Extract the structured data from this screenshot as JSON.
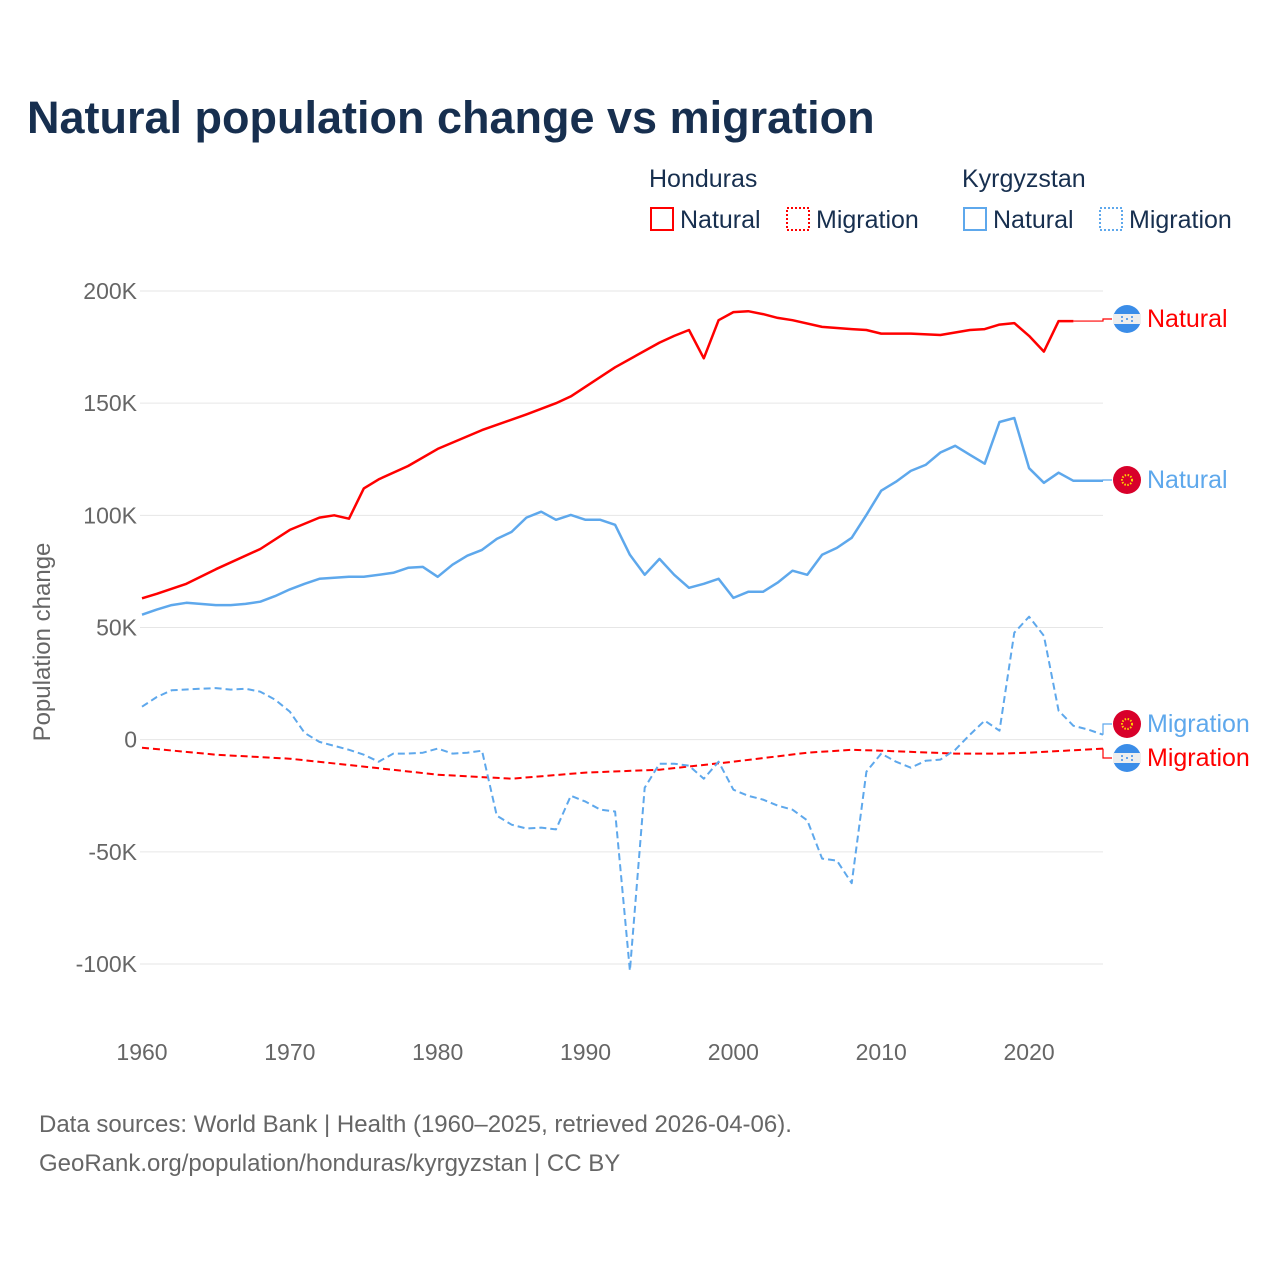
{
  "colors": {
    "honduras": "#ff0000",
    "kyrgyzstan": "#5ea8ec",
    "title": "#172f4f",
    "grid": "#e6e6e6"
  },
  "legend": {
    "groups": [
      {
        "name": "Honduras",
        "items": [
          {
            "label": "Natural",
            "style": "solid"
          },
          {
            "label": "Migration",
            "style": "dotted"
          }
        ]
      },
      {
        "name": "Kyrgyzstan",
        "items": [
          {
            "label": "Natural",
            "style": "solid"
          },
          {
            "label": "Migration",
            "style": "dotted"
          }
        ]
      }
    ]
  },
  "footer": {
    "line1": "Data sources: World Bank | Health (1960–2025, retrieved 2026-04-06).",
    "line2": "GeoRank.org/population/honduras/kyrgyzstan | CC BY"
  },
  "chart_data": {
    "type": "line",
    "title": "Natural population change vs migration",
    "xlabel": "",
    "ylabel": "Population change",
    "xlim": [
      1960,
      2025
    ],
    "ylim": [
      -100000,
      200000
    ],
    "x_ticks": [
      1960,
      1970,
      1980,
      1990,
      2000,
      2010,
      2020
    ],
    "x_tick_labels": [
      "1960",
      "1970",
      "1980",
      "1990",
      "2000",
      "2010",
      "2020"
    ],
    "y_ticks": [
      200000,
      150000,
      100000,
      50000,
      0,
      -50000,
      -100000
    ],
    "y_tick_labels": [
      "200K",
      "150K",
      "100K",
      "50K",
      "0",
      "-50K",
      "-100K"
    ],
    "grid": true,
    "legend_position": "top-right",
    "series": [
      {
        "name": "Honduras Natural",
        "end_label": "Natural",
        "country": "honduras",
        "dash": "solid",
        "x": [
          1960,
          1961,
          1963,
          1965,
          1968,
          1970,
          1972,
          1973,
          1974,
          1975,
          1976,
          1978,
          1980,
          1983,
          1986,
          1988,
          1989,
          1992,
          1995,
          1996,
          1997,
          1998,
          1999,
          2000,
          2001,
          2002,
          2003,
          2004,
          2006,
          2008,
          2009,
          2010,
          2012,
          2014,
          2016,
          2017,
          2018,
          2019,
          2020,
          2021,
          2022,
          2023
        ],
        "y": [
          63000,
          65000,
          69500,
          76000,
          85000,
          93500,
          99000,
          100000,
          98500,
          112000,
          116000,
          122000,
          129600,
          138000,
          145000,
          150000,
          153000,
          166000,
          177000,
          180000,
          182600,
          170000,
          187000,
          190600,
          191000,
          189700,
          188000,
          187000,
          184000,
          183000,
          182600,
          181000,
          181000,
          180400,
          182600,
          183000,
          185000,
          185700,
          180000,
          173000,
          186600,
          186600
        ]
      },
      {
        "name": "Honduras Migration",
        "end_label": "Migration",
        "country": "honduras",
        "dash": "dashed",
        "x": [
          1960,
          1965,
          1970,
          1975,
          1980,
          1985,
          1990,
          1995,
          2000,
          2005,
          2008,
          2010,
          2015,
          2018,
          2020,
          2025
        ],
        "y": [
          -3600,
          -6700,
          -8500,
          -12000,
          -15600,
          -17400,
          -14700,
          -13400,
          -9800,
          -5800,
          -4500,
          -4900,
          -6200,
          -6200,
          -5800,
          -4000
        ]
      },
      {
        "name": "Kyrgyzstan Natural",
        "end_label": "Natural",
        "country": "kyrgyzstan",
        "dash": "solid",
        "x": [
          1960,
          1961,
          1962,
          1963,
          1965,
          1966,
          1967,
          1968,
          1969,
          1970,
          1971,
          1972,
          1974,
          1975,
          1977,
          1978,
          1979,
          1980,
          1981,
          1982,
          1983,
          1984,
          1985,
          1986,
          1987,
          1988,
          1989,
          1990,
          1991,
          1992,
          1993,
          1994,
          1995,
          1996,
          1997,
          1998,
          1999,
          2000,
          2001,
          2002,
          2003,
          2004,
          2005,
          2006,
          2007,
          2008,
          2009,
          2010,
          2011,
          2012,
          2013,
          2014,
          2015,
          2016,
          2017,
          2018,
          2019,
          2020,
          2021,
          2022,
          2023,
          2024,
          2025
        ],
        "y": [
          55700,
          58000,
          60000,
          61000,
          60000,
          60000,
          60500,
          61500,
          64000,
          67000,
          69500,
          71700,
          72600,
          72600,
          74400,
          76600,
          77000,
          72600,
          78000,
          82000,
          84600,
          89500,
          92600,
          99000,
          101600,
          98000,
          100200,
          98000,
          98000,
          95800,
          82400,
          73500,
          80600,
          73500,
          67700,
          69500,
          71700,
          63200,
          65900,
          65900,
          70000,
          75300,
          73500,
          82400,
          85500,
          90000,
          100200,
          111000,
          115000,
          119800,
          122500,
          128000,
          131000,
          127000,
          123000,
          141600,
          143400,
          121000,
          114500,
          119000,
          115400,
          115400,
          115400
        ]
      },
      {
        "name": "Kyrgyzstan Migration",
        "end_label": "Migration",
        "country": "kyrgyzstan",
        "dash": "dashed",
        "x": [
          1960,
          1961,
          1962,
          1964,
          1965,
          1966,
          1967,
          1968,
          1969,
          1970,
          1971,
          1972,
          1974,
          1975,
          1976,
          1977,
          1978,
          1979,
          1980,
          1981,
          1982,
          1983,
          1984,
          1985,
          1986,
          1987,
          1988,
          1989,
          1990,
          1991,
          1992,
          1993,
          1994,
          1995,
          1996,
          1997,
          1998,
          1999,
          2000,
          2001,
          2002,
          2003,
          2004,
          2005,
          2006,
          2007,
          2008,
          2009,
          2010,
          2011,
          2012,
          2013,
          2014,
          2015,
          2016,
          2017,
          2018,
          2019,
          2020,
          2021,
          2022,
          2023,
          2024,
          2025
        ],
        "y": [
          14700,
          19000,
          22000,
          22700,
          23000,
          22300,
          22700,
          21400,
          17800,
          12500,
          3000,
          -1000,
          -4500,
          -6700,
          -9800,
          -6200,
          -6200,
          -5800,
          -4000,
          -6200,
          -5800,
          -4900,
          -33900,
          -37900,
          -39600,
          -39200,
          -40000,
          -25000,
          -27600,
          -31200,
          -32000,
          -103000,
          -21400,
          -10700,
          -10700,
          -11600,
          -17400,
          -9800,
          -22300,
          -25000,
          -26700,
          -29400,
          -31200,
          -36000,
          -53000,
          -53900,
          -64000,
          -14300,
          -6200,
          -9800,
          -12500,
          -9400,
          -8900,
          -4500,
          2200,
          8500,
          4000,
          47700,
          54800,
          46300,
          12900,
          6200,
          4500,
          2200
        ]
      }
    ]
  }
}
